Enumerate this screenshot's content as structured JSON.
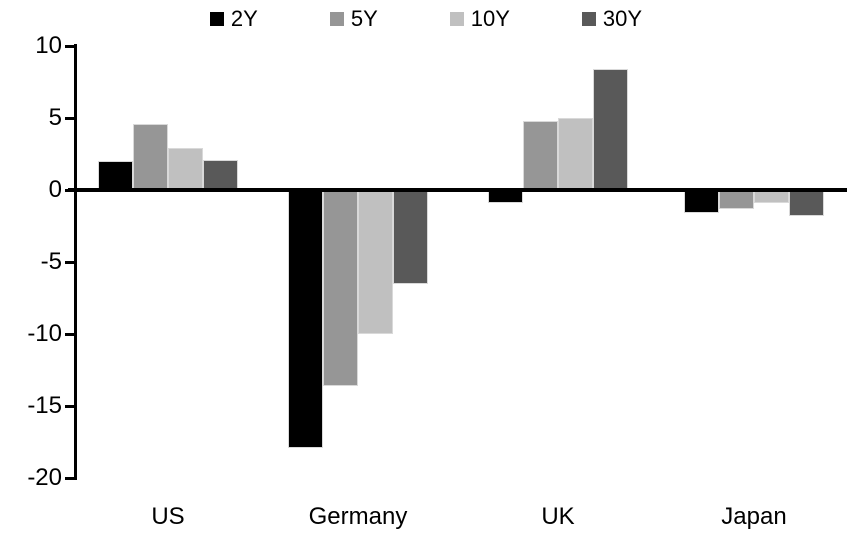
{
  "chart_data": {
    "type": "bar",
    "title": "",
    "xlabel": "",
    "ylabel": "",
    "categories": [
      "US",
      "Germany",
      "UK",
      "Japan"
    ],
    "series": [
      {
        "name": "2Y",
        "color": "#000000",
        "values": [
          2.0,
          -17.9,
          -0.9,
          -1.6
        ]
      },
      {
        "name": "5Y",
        "color": "#969696",
        "values": [
          4.6,
          -13.6,
          4.8,
          -1.3
        ]
      },
      {
        "name": "10Y",
        "color": "#c0c0c0",
        "values": [
          2.9,
          -10.0,
          5.0,
          -0.9
        ]
      },
      {
        "name": "30Y",
        "color": "#595959",
        "values": [
          2.1,
          -6.5,
          8.4,
          -1.8
        ]
      }
    ],
    "ylim": [
      -20,
      10
    ],
    "yticks": [
      10,
      5,
      0,
      -5,
      -10,
      -15,
      -20
    ],
    "grid": false,
    "legend_position": "top",
    "axis_color": "#000000",
    "background_color": "#ffffff"
  }
}
